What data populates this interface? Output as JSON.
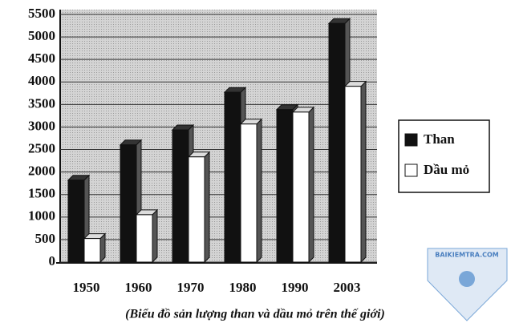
{
  "chart_data": {
    "type": "bar",
    "caption": "(Biểu đồ sản lượng than và dầu mỏ trên thế giới)",
    "categories": [
      "1950",
      "1960",
      "1970",
      "1980",
      "1990",
      "2003"
    ],
    "series": [
      {
        "name": "Than",
        "color": "#111111",
        "values": [
          1820,
          2603,
          2936,
          3770,
          3387,
          5300
        ]
      },
      {
        "name": "Dầu mỏ",
        "color": "#ffffff",
        "values": [
          523,
          1052,
          2336,
          3066,
          3331,
          3904
        ]
      }
    ],
    "ylim": [
      0,
      5500
    ],
    "yticks": [
      0,
      500,
      1000,
      1500,
      2000,
      2500,
      3000,
      3500,
      4000,
      4500,
      5000,
      5500
    ],
    "grid": true,
    "legend": "right"
  },
  "watermark": "BAIKIEMTRA.COM"
}
